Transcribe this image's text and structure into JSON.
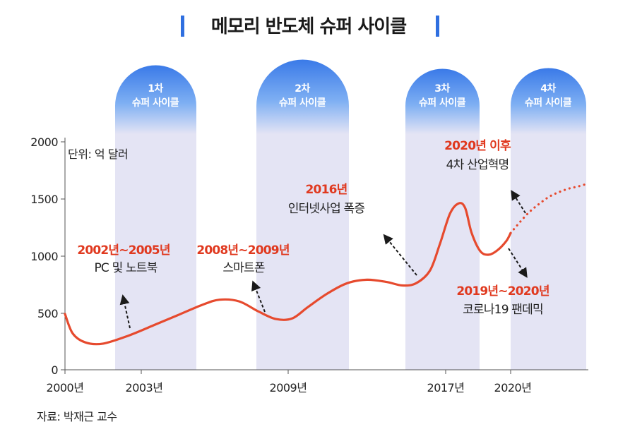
{
  "title": "메모리 반도체 슈퍼 사이클",
  "unit_label": "단위: 억 달러",
  "source": "자료: 박재근 교수",
  "colors": {
    "accent_blue": "#2f6fe0",
    "line_red": "#e64a2e",
    "text_red": "#e0391f",
    "band": "#e4e4f4"
  },
  "cycles": [
    {
      "line1": "1차",
      "line2": "슈퍼 사이클"
    },
    {
      "line1": "2차",
      "line2": "슈퍼 사이클"
    },
    {
      "line1": "3차",
      "line2": "슈퍼 사이클"
    },
    {
      "line1": "4차",
      "line2": "슈퍼 사이클"
    }
  ],
  "annotations": [
    {
      "red": "2002년~2005년",
      "black": "PC 및 노트북"
    },
    {
      "red": "2008년~2009년",
      "black": "스마트폰"
    },
    {
      "red": "2016년",
      "black": "인터넷사업 폭증"
    },
    {
      "red": "2020년 이후",
      "black": "4차 산업혁명"
    },
    {
      "red": "2019년~2020년",
      "black": "코로나19 팬데믹"
    }
  ],
  "chart_data": {
    "type": "line",
    "title": "메모리 반도체 슈퍼 사이클",
    "ylabel": "단위: 억 달러",
    "ylim": [
      0,
      2000
    ],
    "yticks": [
      "0",
      "500",
      "1000",
      "1500",
      "2000"
    ],
    "xticks": [
      "2000년",
      "2003년",
      "2009년",
      "2017년",
      "2020년"
    ],
    "grid": false,
    "series": [
      {
        "style": "solid",
        "x": [
          2000.0,
          2000.3,
          2000.8,
          2001.5,
          2002.5,
          2003.5,
          2004.5,
          2005.5,
          2006.2,
          2007.0,
          2007.8,
          2008.5,
          2009.2,
          2010.0,
          2011.0,
          2012.0,
          2013.0,
          2014.0,
          2014.8,
          2015.5,
          2016.2,
          2016.7,
          2017.2,
          2017.6,
          2017.9,
          2018.2,
          2018.6,
          2019.0,
          2019.4,
          2019.8,
          2020.0
        ],
        "y": [
          490,
          320,
          240,
          230,
          300,
          390,
          480,
          570,
          615,
          600,
          510,
          445,
          450,
          550,
          670,
          760,
          790,
          770,
          740,
          760,
          870,
          1100,
          1370,
          1460,
          1420,
          1200,
          1040,
          1010,
          1050,
          1130,
          1200
        ]
      },
      {
        "style": "dotted",
        "x": [
          2020.0,
          2020.5,
          2021.0,
          2021.5,
          2022.0,
          2022.5,
          2023.0,
          2023.5,
          2023.9
        ],
        "y": [
          1200,
          1300,
          1390,
          1460,
          1520,
          1560,
          1590,
          1610,
          1630
        ]
      }
    ],
    "bands": [
      {
        "label": "1차 슈퍼 사이클",
        "from": 2002.2,
        "to": 2005.5
      },
      {
        "label": "2차 슈퍼 사이클",
        "from": 2008.0,
        "to": 2010.5
      },
      {
        "label": "3차 슈퍼 사이클",
        "from": 2015.6,
        "to": 2018.5
      },
      {
        "label": "4차 슈퍼 사이클",
        "from": 2020.0,
        "to": 2023.9
      }
    ]
  }
}
